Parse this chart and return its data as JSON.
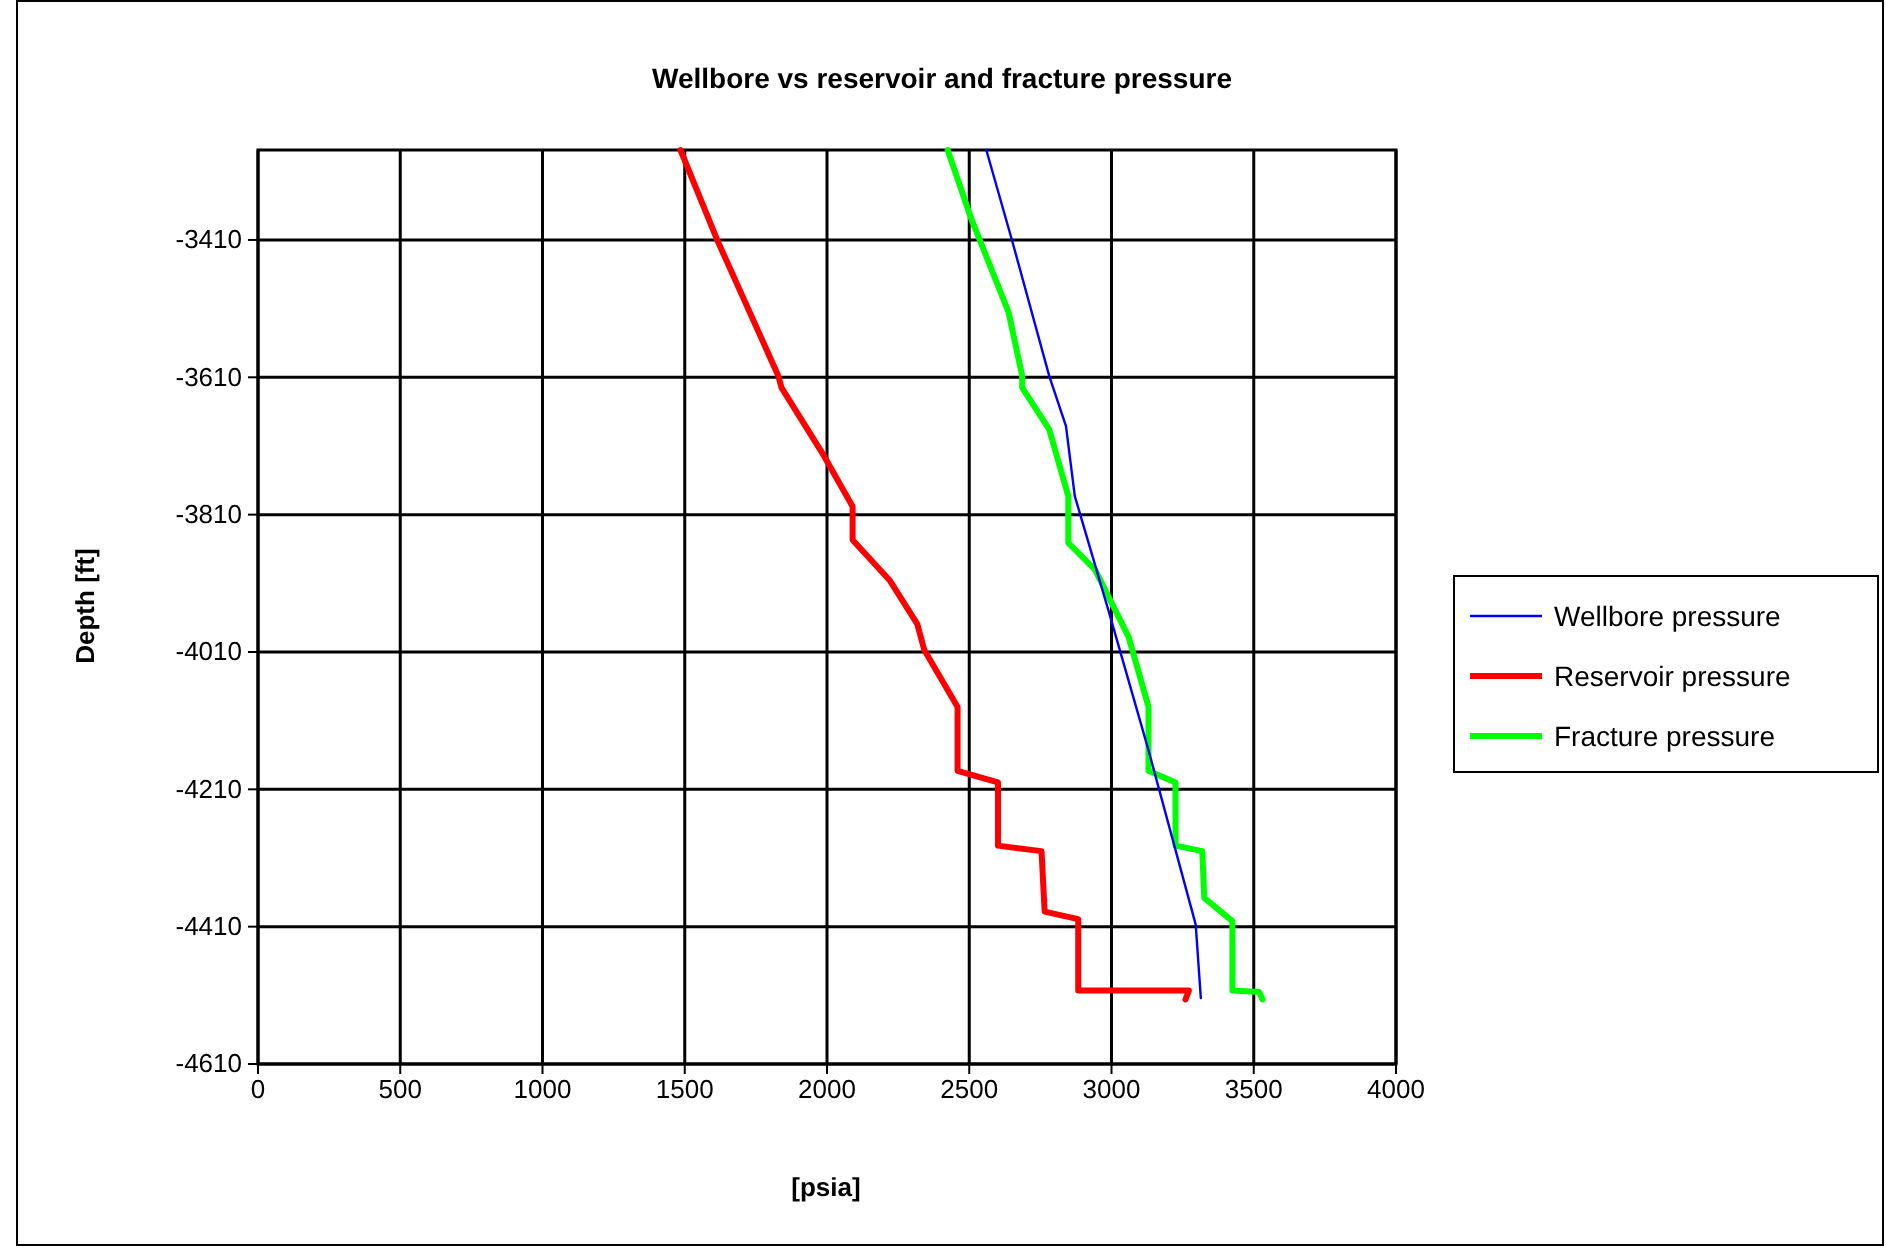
{
  "chart_data": {
    "type": "line",
    "title": "Wellbore vs reservoir and fracture pressure",
    "xlabel": "[psia]",
    "ylabel": "Depth [ft]",
    "xlim": [
      0,
      4000
    ],
    "xticks": [
      0,
      500,
      1000,
      1500,
      2000,
      2500,
      3000,
      3500,
      4000
    ],
    "ylim": [
      -4610,
      -3279
    ],
    "yticks": [
      -4610,
      -4410,
      -4210,
      -4010,
      -3810,
      -3610,
      -3410
    ],
    "grid": true,
    "legend": "right",
    "marker": "none",
    "line_style": "solid",
    "series": [
      {
        "name": "Wellbore pressure",
        "color": "#0000ff",
        "x": [
          2560,
          2650,
          2781,
          2840,
          2871,
          2989,
          3130,
          3296,
          3314
        ],
        "values": [
          -3279,
          -3410,
          -3608,
          -3681,
          -3783,
          -3949,
          -4153,
          -4407,
          -4514
        ]
      },
      {
        "name": "Reservoir pressure",
        "color": "#ff0000",
        "x": [
          1485,
          1614,
          1829,
          1840,
          1983,
          2090,
          2090,
          2221,
          2317,
          2342,
          2459,
          2459,
          2601,
          2601,
          2754,
          2765,
          2883,
          2883,
          3272,
          3260
        ],
        "values": [
          -3279,
          -3410,
          -3608,
          -3625,
          -3720,
          -3798,
          -3847,
          -3906,
          -3969,
          -4007,
          -4090,
          -4183,
          -4200,
          -4292,
          -4300,
          -4388,
          -4399,
          -4503,
          -4503,
          -4516
        ]
      },
      {
        "name": "Fracture pressure",
        "color": "#00ff00",
        "x": [
          2424,
          2507,
          2638,
          2686,
          2686,
          2781,
          2848,
          2848,
          2942,
          2989,
          3060,
          3130,
          3130,
          3225,
          3225,
          3319,
          3326,
          3425,
          3425,
          3519,
          3531
        ],
        "values": [
          -3279,
          -3379,
          -3515,
          -3608,
          -3625,
          -3686,
          -3783,
          -3851,
          -3890,
          -3929,
          -3988,
          -4090,
          -4183,
          -4200,
          -4292,
          -4300,
          -4368,
          -4402,
          -4503,
          -4505,
          -4516
        ]
      }
    ]
  }
}
